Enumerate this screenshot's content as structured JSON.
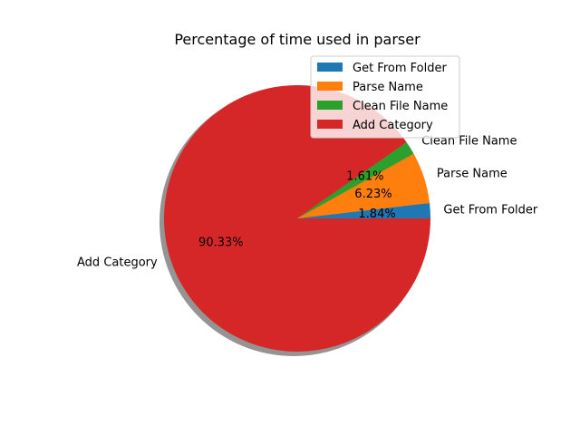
{
  "chart_data": {
    "type": "pie",
    "title": "Percentage of time used in parser",
    "categories": [
      "Get From Folder",
      "Parse Name",
      "Clean File Name",
      "Add Category"
    ],
    "values": [
      1.84,
      6.23,
      1.61,
      90.33
    ],
    "value_labels": [
      "1.84%",
      "6.23%",
      "1.61%",
      "90.33%"
    ],
    "colors": [
      "#1f77b4",
      "#ff7f0e",
      "#2ca02c",
      "#d62728"
    ],
    "start_angle_deg": 0,
    "direction": "counterclockwise",
    "shadow": true,
    "legend": {
      "placement": "top-right",
      "entries": [
        "Get From Folder",
        "Parse Name",
        "Clean File Name",
        "Add Category"
      ]
    }
  }
}
